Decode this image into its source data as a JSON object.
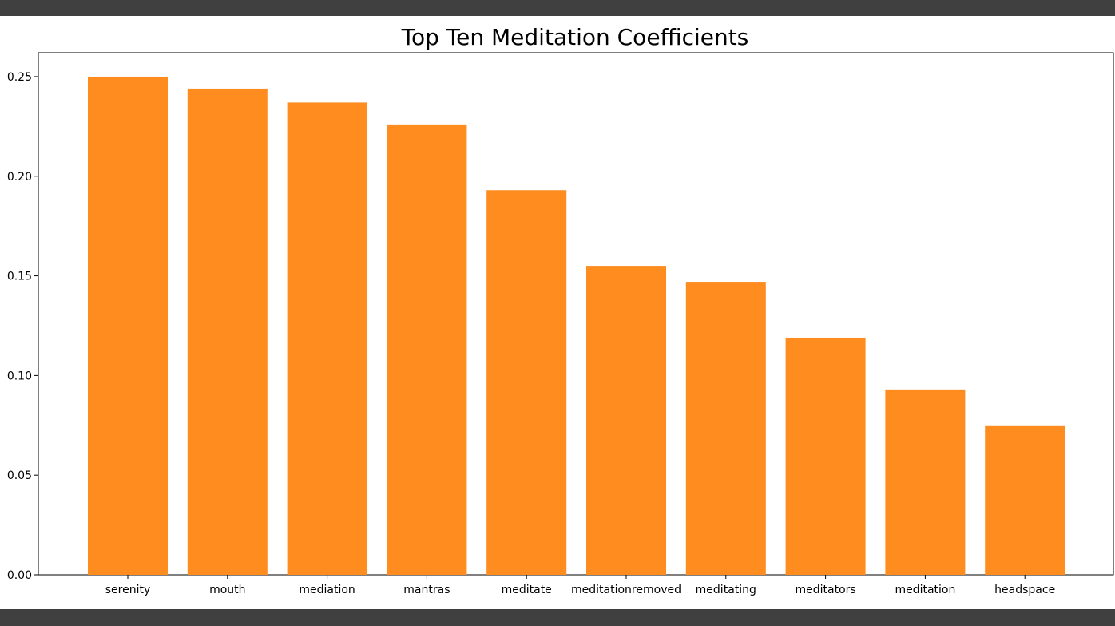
{
  "chart_data": {
    "type": "bar",
    "title": "Top Ten Meditation Coefficients",
    "xlabel": "",
    "ylabel": "",
    "categories": [
      "serenity",
      "mouth",
      "mediation",
      "mantras",
      "meditate",
      "meditationremoved",
      "meditating",
      "meditators",
      "meditation",
      "headspace"
    ],
    "values": [
      0.25,
      0.244,
      0.237,
      0.226,
      0.193,
      0.155,
      0.147,
      0.119,
      0.093,
      0.075
    ],
    "ylim": [
      0,
      0.262
    ],
    "yticks": [
      0.0,
      0.05,
      0.1,
      0.15,
      0.2,
      0.25
    ],
    "ytick_labels": [
      "0.00",
      "0.05",
      "0.10",
      "0.15",
      "0.20",
      "0.25"
    ],
    "bar_color": "#ff8c1f",
    "grid": false,
    "legend": "none"
  },
  "colors": {
    "band": "#404040",
    "axis": "#000000"
  }
}
